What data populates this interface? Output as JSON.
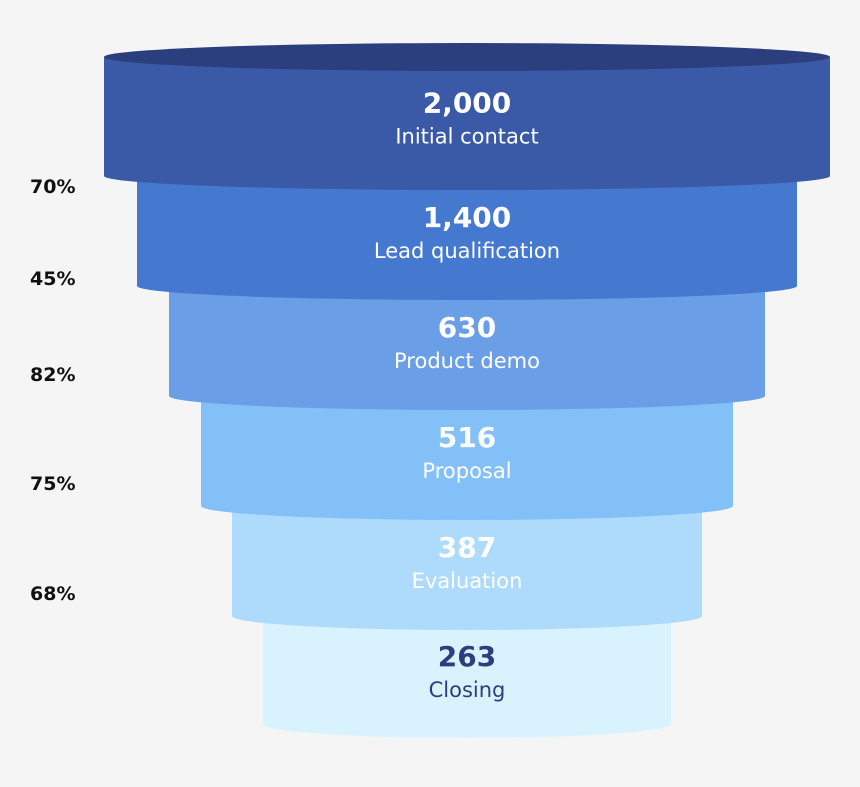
{
  "chart_data": {
    "type": "funnel",
    "stages": [
      {
        "label": "Initial contact",
        "value": 2000,
        "display": "2,000",
        "color": "#3a5aa8",
        "top_color": "#2b3f7e",
        "text_color": "#ffffff"
      },
      {
        "label": "Lead qualification",
        "value": 1400,
        "display": "1,400",
        "color": "#4479cf",
        "top_color": "#3a67b5",
        "text_color": "#ffffff"
      },
      {
        "label": "Product demo",
        "value": 630,
        "display": "630",
        "color": "#6a9ee6",
        "top_color": "#5a8dd6",
        "text_color": "#ffffff"
      },
      {
        "label": "Proposal",
        "value": 516,
        "display": "516",
        "color": "#84c0f8",
        "top_color": "#72ace8",
        "text_color": "#ffffff"
      },
      {
        "label": "Evaluation",
        "value": 387,
        "display": "387",
        "color": "#aedbfc",
        "top_color": "#9ccbf0",
        "text_color": "#ffffff"
      },
      {
        "label": "Closing",
        "value": 263,
        "display": "263",
        "color": "#d9f3fe",
        "top_color": "#c8e8f6",
        "text_color": "#2b3f7e"
      }
    ],
    "conversion_rates": [
      "70%",
      "45%",
      "82%",
      "75%",
      "68%"
    ]
  }
}
